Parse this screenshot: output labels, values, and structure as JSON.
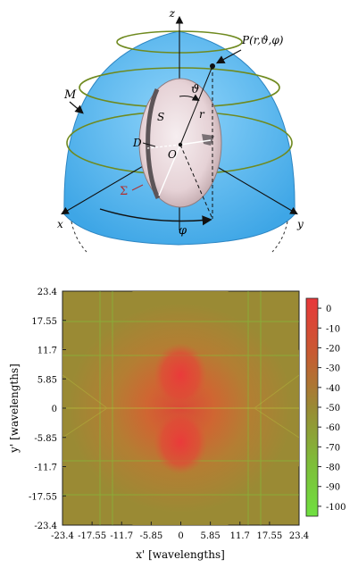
{
  "diagram": {
    "labels": {
      "z_axis": "z",
      "x_axis": "x",
      "y_axis": "y",
      "point": "P(r,ϑ,φ)",
      "manifold": "M",
      "theta": "ϑ",
      "r": "r",
      "s": "S",
      "d": "D",
      "origin": "O",
      "sigma": "Σ",
      "phi": "φ"
    },
    "colors": {
      "dome": "#5ab8ee",
      "rings": "#6f8a1f",
      "body": "#e9d9dc",
      "sigma": "#b03030"
    }
  },
  "chart_data": {
    "type": "heatmap",
    "xlabel": "x' [wavelengths]",
    "ylabel": "y' [wavelengths]",
    "xlim": [
      -23.4,
      23.4
    ],
    "ylim": [
      -23.4,
      23.4
    ],
    "x_ticks": [
      "-23.4",
      "-17.55",
      "-11.7",
      "-5.85",
      "0",
      "5.85",
      "11.7",
      "17.55",
      "23.4"
    ],
    "y_ticks": [
      "23.4",
      "17.55",
      "11.7",
      "5.85",
      "0",
      "-5.85",
      "-11.7",
      "-17.55",
      "-23.4"
    ],
    "colorbar": {
      "range": [
        -105,
        5
      ],
      "ticks": [
        "0",
        "-10",
        "-20",
        "-30",
        "-40",
        "-50",
        "-60",
        "-70",
        "-80",
        "-90",
        "-100"
      ],
      "colors": {
        "high": "#e8383a",
        "mid": "#9a8a34",
        "low": "#6fe040"
      }
    },
    "peaks": [
      {
        "x": 0,
        "y": 4.5,
        "value": 0
      },
      {
        "x": 0,
        "y": -4.5,
        "value": 0
      }
    ]
  }
}
